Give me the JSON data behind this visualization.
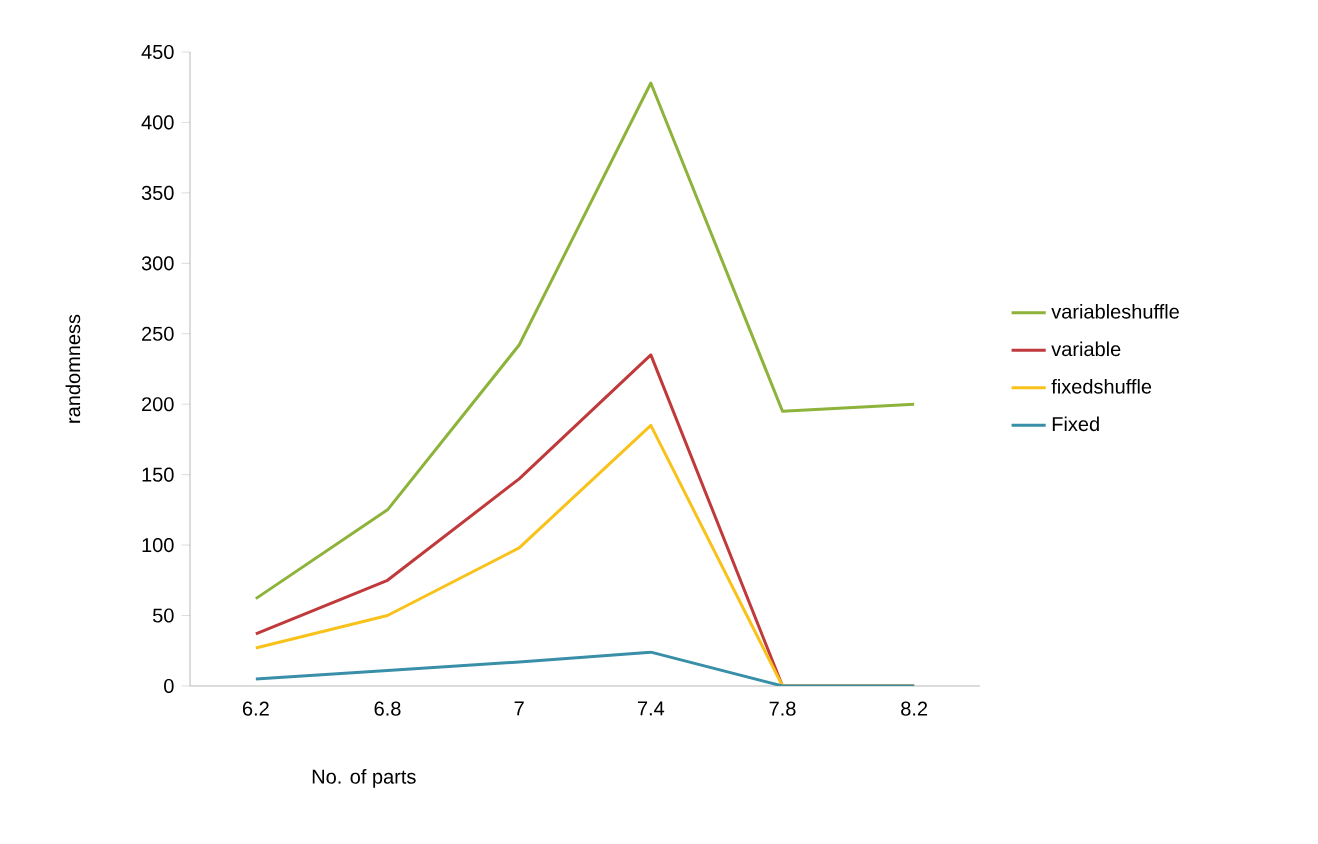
{
  "chart_data": {
    "type": "line",
    "xlabel": "No. of parts",
    "ylabel": "randomness",
    "categories": [
      "6.2",
      "6.8",
      "7",
      "7.4",
      "7.8",
      "8.2"
    ],
    "series": [
      {
        "name": "variableshuffle",
        "color": "#8db33a",
        "values": [
          62,
          125,
          242,
          428,
          195,
          200
        ]
      },
      {
        "name": "variable",
        "color": "#c0393b",
        "values": [
          37,
          75,
          147,
          235,
          0,
          0
        ]
      },
      {
        "name": "fixedshuffle",
        "color": "#f9c21a",
        "values": [
          27,
          50,
          98,
          185,
          0,
          0
        ]
      },
      {
        "name": "Fixed",
        "color": "#3a8fa8",
        "values": [
          5,
          11,
          17,
          24,
          0,
          0
        ]
      }
    ],
    "ylim": [
      0,
      450
    ],
    "yticks": [
      0,
      50,
      100,
      150,
      200,
      250,
      300,
      350,
      400,
      450
    ],
    "legend": "right",
    "marker": "none",
    "line_style": "solid",
    "grid": false
  }
}
